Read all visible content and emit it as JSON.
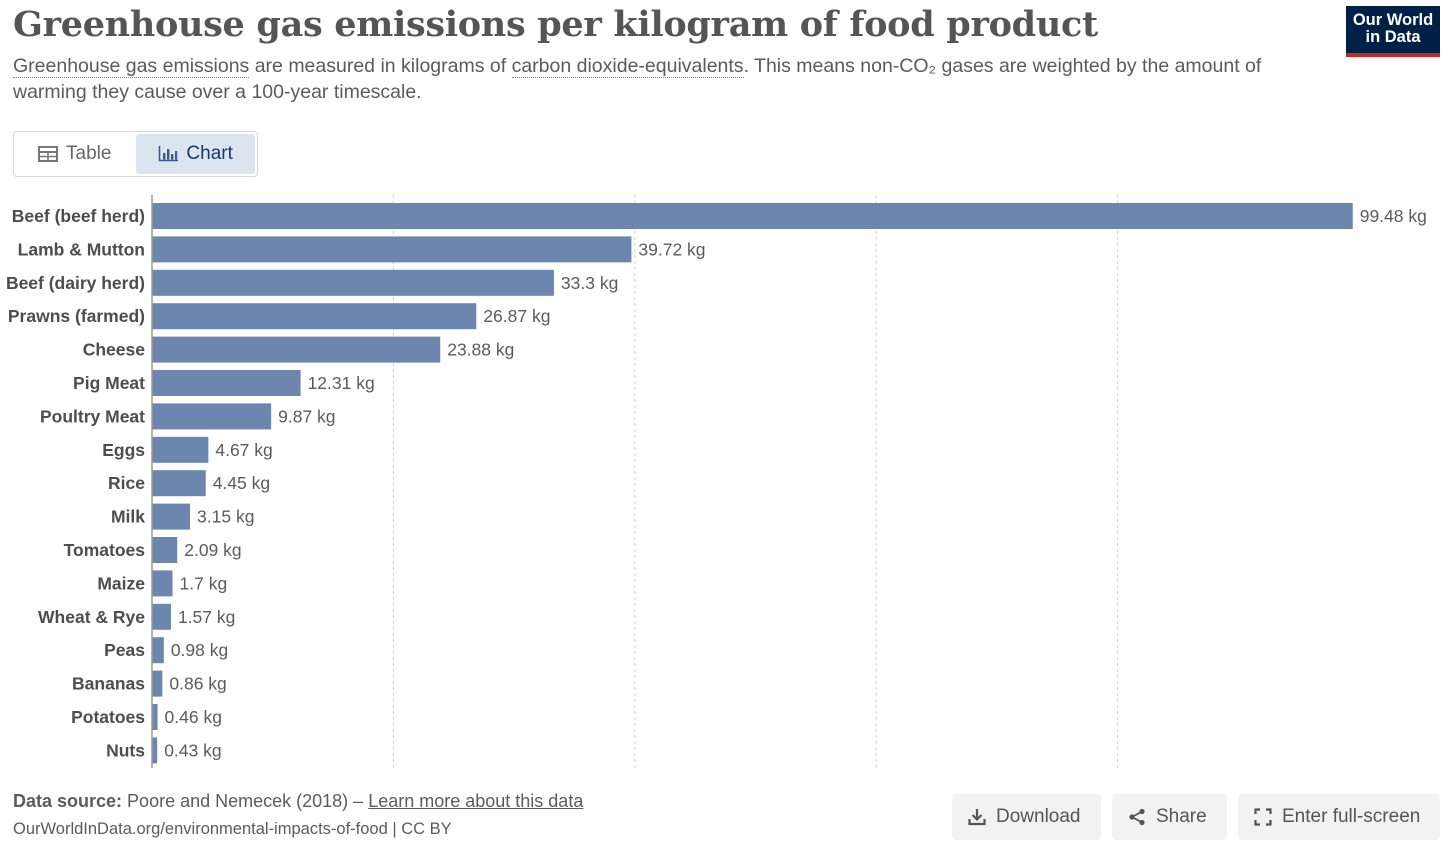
{
  "header": {
    "title": "Greenhouse gas emissions per kilogram of food product",
    "subtitle_link1": "Greenhouse gas emissions",
    "subtitle_mid1": " are measured in kilograms of ",
    "subtitle_link2": "carbon dioxide-equivalents",
    "subtitle_rest": ". This means non-CO₂ gases are weighted by the amount of warming they cause over a 100-year timescale.",
    "logo_line1": "Our World",
    "logo_line2": "in Data"
  },
  "tabs": [
    {
      "label": "Table",
      "icon": "table-icon",
      "active": false
    },
    {
      "label": "Chart",
      "icon": "bar-chart-icon",
      "active": true
    }
  ],
  "colors": {
    "bar": "#6c86b0",
    "grid": "#d0d0d0",
    "axis": "#9a9a9a",
    "label": "#4d4d4d",
    "value_label": "#5b5b5b"
  },
  "chart_data": {
    "type": "bar",
    "orientation": "horizontal",
    "categories": [
      "Beef (beef herd)",
      "Lamb & Mutton",
      "Beef (dairy herd)",
      "Prawns (farmed)",
      "Cheese",
      "Pig Meat",
      "Poultry Meat",
      "Eggs",
      "Rice",
      "Milk",
      "Tomatoes",
      "Maize",
      "Wheat & Rye",
      "Peas",
      "Bananas",
      "Potatoes",
      "Nuts"
    ],
    "values": [
      99.48,
      39.72,
      33.3,
      26.87,
      23.88,
      12.31,
      9.87,
      4.67,
      4.45,
      3.15,
      2.09,
      1.7,
      1.57,
      0.98,
      0.86,
      0.46,
      0.43
    ],
    "value_labels": [
      "99.48 kg",
      "39.72 kg",
      "33.3 kg",
      "26.87 kg",
      "23.88 kg",
      "12.31 kg",
      "9.87 kg",
      "4.67 kg",
      "4.45 kg",
      "3.15 kg",
      "2.09 kg",
      "1.7 kg",
      "1.57 kg",
      "0.98 kg",
      "0.86 kg",
      "0.46 kg",
      "0.43 kg"
    ],
    "xlim": [
      0,
      100
    ],
    "gridlines": [
      20,
      40,
      60,
      80
    ],
    "grid": true
  },
  "footer": {
    "source_label": "Data source:",
    "source_text": " Poore and Nemecek (2018) – ",
    "source_link": "Learn more about this data",
    "url": "OurWorldInData.org/environmental-impacts-of-food | CC BY"
  },
  "actions": {
    "download": "Download",
    "share": "Share",
    "fullscreen": "Enter full-screen"
  }
}
